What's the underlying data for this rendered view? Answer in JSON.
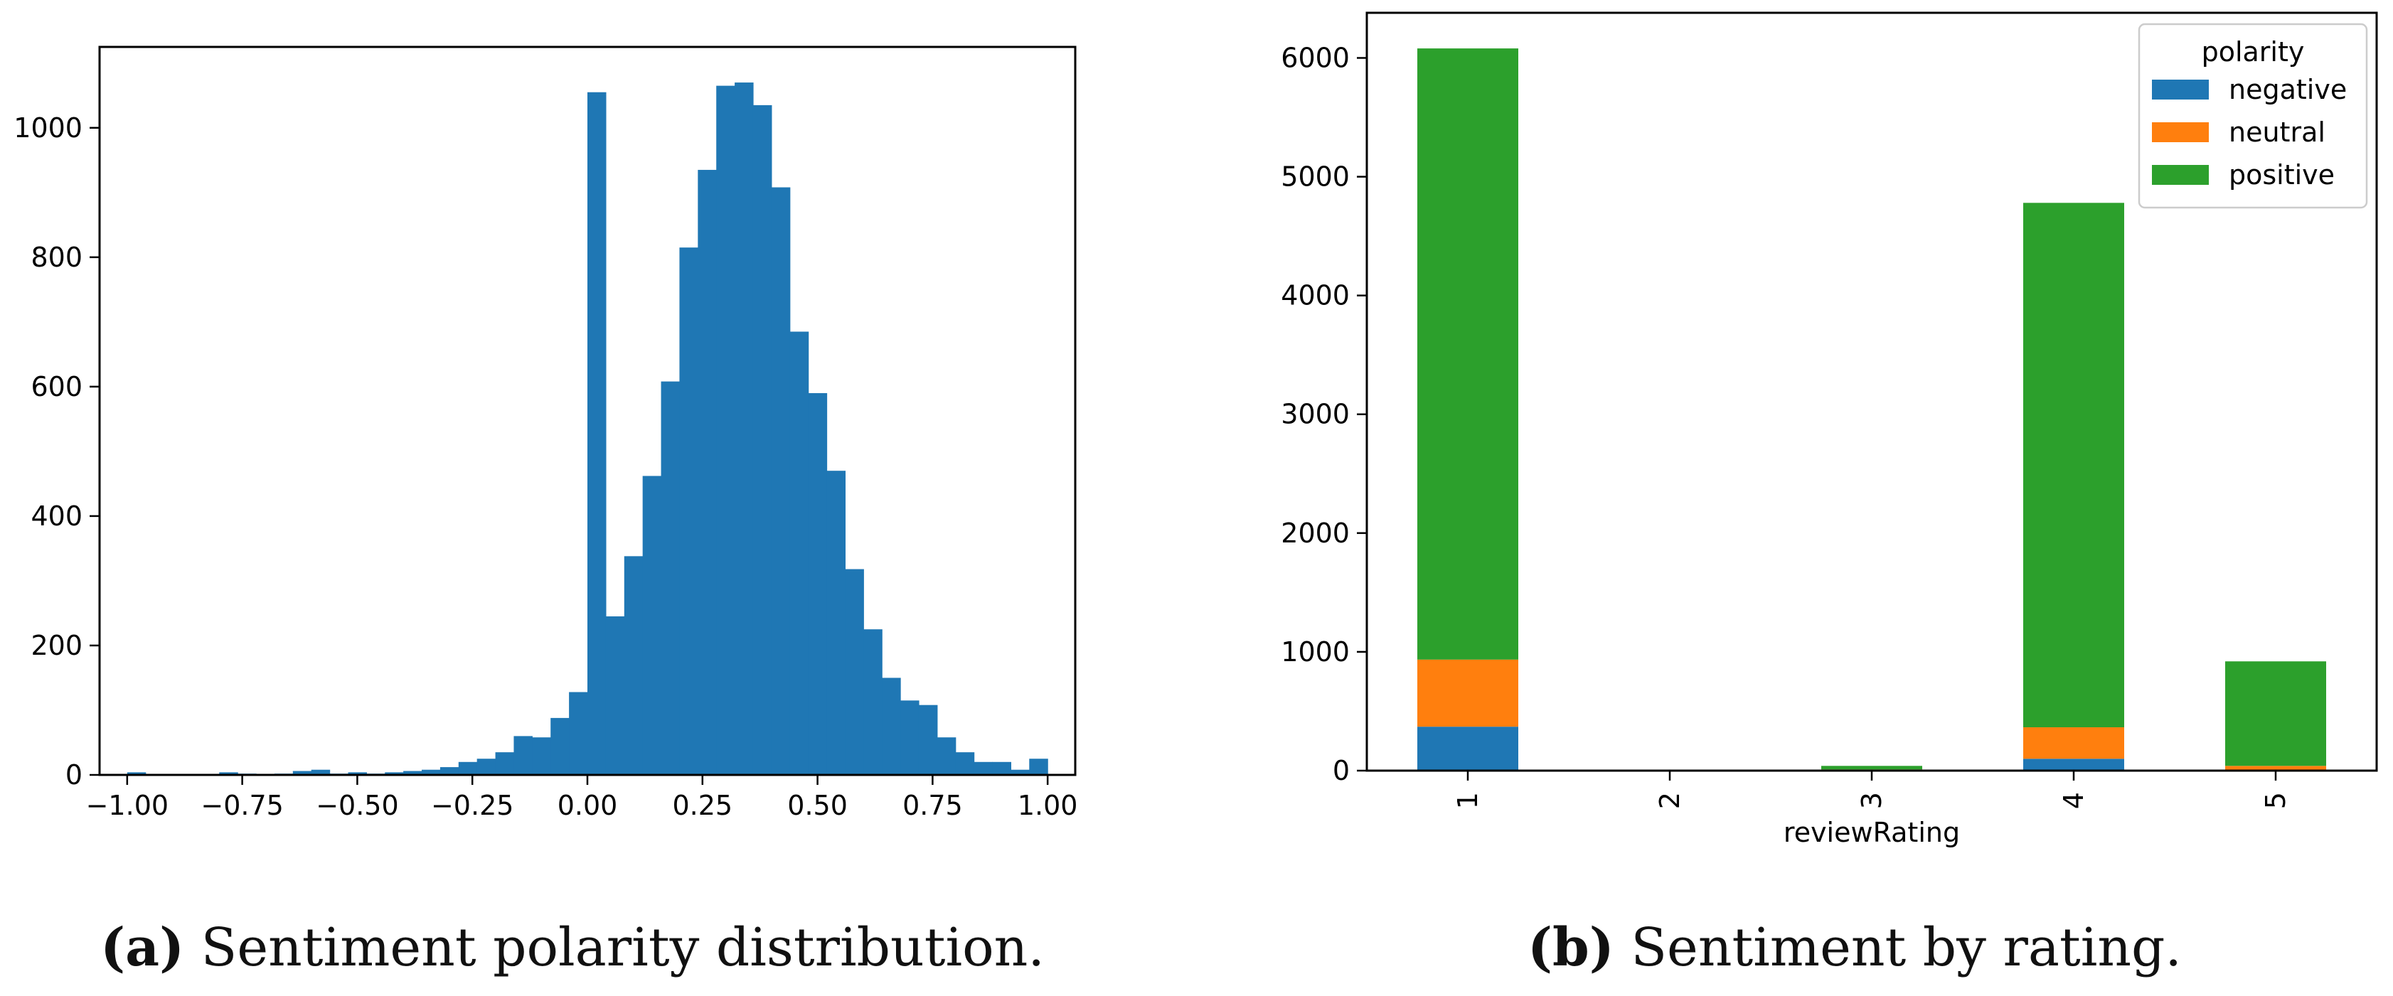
{
  "captions": {
    "a_tag": "(a)",
    "a_text": "Sentiment polarity distribution.",
    "b_tag": "(b)",
    "b_text": "Sentiment by rating."
  },
  "chart_data": [
    {
      "type": "bar",
      "subtype": "histogram",
      "title": "",
      "xlabel": "",
      "ylabel": "",
      "color": "#1f77b4",
      "bin_width": 0.04,
      "bin_starts": [
        -1.0,
        -0.96,
        -0.92,
        -0.88,
        -0.84,
        -0.8,
        -0.76,
        -0.72,
        -0.68,
        -0.64,
        -0.6,
        -0.56,
        -0.52,
        -0.48,
        -0.44,
        -0.4,
        -0.36,
        -0.32,
        -0.28,
        -0.24,
        -0.2,
        -0.16,
        -0.12,
        -0.08,
        -0.04,
        0.0,
        0.04,
        0.08,
        0.12,
        0.16,
        0.2,
        0.24,
        0.28,
        0.32,
        0.36,
        0.4,
        0.44,
        0.48,
        0.52,
        0.56,
        0.6,
        0.64,
        0.68,
        0.72,
        0.76,
        0.8,
        0.84,
        0.88,
        0.92,
        0.96
      ],
      "values": [
        4,
        1,
        1,
        1,
        1,
        4,
        2,
        1,
        2,
        6,
        8,
        2,
        4,
        2,
        4,
        6,
        8,
        12,
        20,
        25,
        35,
        60,
        58,
        88,
        128,
        1055,
        245,
        338,
        462,
        608,
        815,
        935,
        1065,
        1070,
        1035,
        908,
        685,
        590,
        470,
        318,
        225,
        150,
        115,
        108,
        58,
        35,
        20,
        20,
        8,
        25
      ],
      "xlim": [
        -1.06,
        1.06
      ],
      "ylim": [
        0,
        1125
      ],
      "xticks": [
        "−1.00",
        "−0.75",
        "−0.50",
        "−0.25",
        "0.00",
        "0.25",
        "0.50",
        "0.75",
        "1.00"
      ],
      "xtick_values": [
        -1.0,
        -0.75,
        -0.5,
        -0.25,
        0.0,
        0.25,
        0.5,
        0.75,
        1.0
      ],
      "yticks": [
        "0",
        "200",
        "400",
        "600",
        "800",
        "1000"
      ],
      "ytick_values": [
        0,
        200,
        400,
        600,
        800,
        1000
      ],
      "grid": false
    },
    {
      "type": "bar",
      "subtype": "stacked",
      "title": "",
      "xlabel": "reviewRating",
      "ylabel": "",
      "categories": [
        "1",
        "2",
        "3",
        "4",
        "5"
      ],
      "series": [
        {
          "name": "negative",
          "color": "#1f77b4",
          "values": [
            370,
            0,
            4,
            100,
            4
          ]
        },
        {
          "name": "neutral",
          "color": "#ff7f0e",
          "values": [
            565,
            0,
            6,
            265,
            36
          ]
        },
        {
          "name": "positive",
          "color": "#2ca02c",
          "values": [
            5145,
            0,
            30,
            4415,
            880
          ]
        }
      ],
      "ylim": [
        0,
        6380
      ],
      "yticks": [
        "0",
        "1000",
        "2000",
        "3000",
        "4000",
        "5000",
        "6000"
      ],
      "ytick_values": [
        0,
        1000,
        2000,
        3000,
        4000,
        5000,
        6000
      ],
      "legend": {
        "title": "polarity",
        "placement": "top-right"
      },
      "grid": false
    }
  ]
}
